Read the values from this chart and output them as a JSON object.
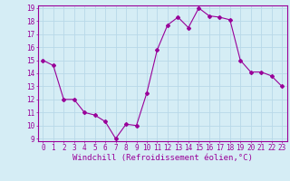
{
  "x": [
    0,
    1,
    2,
    3,
    4,
    5,
    6,
    7,
    8,
    9,
    10,
    11,
    12,
    13,
    14,
    15,
    16,
    17,
    18,
    19,
    20,
    21,
    22,
    23
  ],
  "y": [
    15.0,
    14.6,
    12.0,
    12.0,
    11.0,
    10.8,
    10.3,
    9.0,
    10.1,
    10.0,
    12.5,
    15.8,
    17.7,
    18.3,
    17.5,
    19.0,
    18.4,
    18.3,
    18.1,
    15.0,
    14.1,
    14.1,
    13.8,
    13.0
  ],
  "line_color": "#990099",
  "marker": "D",
  "markersize": 2.0,
  "linewidth": 0.8,
  "xlabel": "Windchill (Refroidissement éolien,°C)",
  "xlabel_fontsize": 6.5,
  "ylim": [
    9,
    19
  ],
  "xlim": [
    -0.5,
    23.5
  ],
  "yticks": [
    9,
    10,
    11,
    12,
    13,
    14,
    15,
    16,
    17,
    18,
    19
  ],
  "xticks": [
    0,
    1,
    2,
    3,
    4,
    5,
    6,
    7,
    8,
    9,
    10,
    11,
    12,
    13,
    14,
    15,
    16,
    17,
    18,
    19,
    20,
    21,
    22,
    23
  ],
  "bg_color": "#d5edf5",
  "grid_color": "#b8d8e8",
  "tick_color": "#990099",
  "tick_fontsize": 5.5,
  "spine_color": "#990099"
}
